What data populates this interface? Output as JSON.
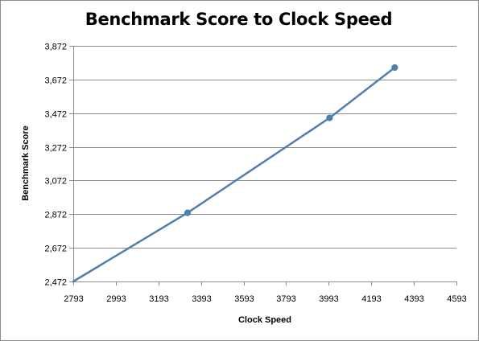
{
  "chart_data": {
    "type": "line",
    "title": "Benchmark Score to Clock Speed",
    "xlabel": "Clock Speed",
    "ylabel": "Benchmark Score",
    "xlim": [
      2793,
      4593
    ],
    "ylim": [
      2472,
      3872
    ],
    "x_ticks": [
      2793,
      2993,
      3193,
      3393,
      3593,
      3793,
      3993,
      4193,
      4393,
      4593
    ],
    "y_ticks": [
      2472,
      2672,
      2872,
      3072,
      3272,
      3472,
      3672,
      3872
    ],
    "y_tick_labels": [
      "2,472",
      "2,672",
      "2,872",
      "3,072",
      "3,272",
      "3,472",
      "3,672",
      "3,872"
    ],
    "grid": "horizontal",
    "legend": "none",
    "series": [
      {
        "color": "#4f7fae",
        "points": [
          {
            "x": 2793,
            "y": 2472,
            "marker": false
          },
          {
            "x": 3330,
            "y": 2880,
            "marker": true
          },
          {
            "x": 3997,
            "y": 3444,
            "marker": true
          },
          {
            "x": 4303,
            "y": 3743,
            "marker": true
          }
        ]
      }
    ]
  }
}
